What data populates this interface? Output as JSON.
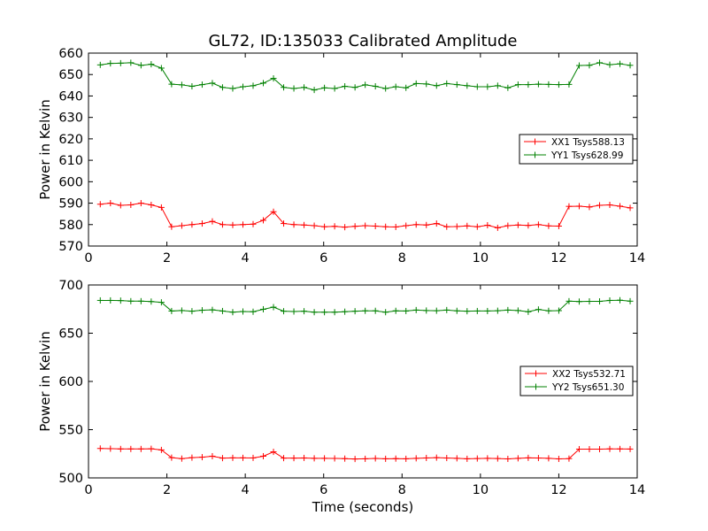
{
  "chart_data": [
    {
      "type": "line",
      "title": "GL72, ID:135033 Calibrated Amplitude",
      "xlabel": "",
      "ylabel": "Power in Kelvin",
      "xlim": [
        0,
        14
      ],
      "ylim": [
        570,
        660
      ],
      "xticks": [
        "0",
        "2",
        "4",
        "6",
        "8",
        "10",
        "12",
        "14"
      ],
      "yticks": [
        "570",
        "580",
        "590",
        "600",
        "610",
        "620",
        "630",
        "640",
        "650",
        "660"
      ],
      "legend_position": "center-right",
      "grid": false,
      "x": [
        0.3,
        0.56,
        0.82,
        1.08,
        1.34,
        1.6,
        1.86,
        2.12,
        2.38,
        2.64,
        2.9,
        3.16,
        3.42,
        3.68,
        3.94,
        4.2,
        4.46,
        4.72,
        4.98,
        5.24,
        5.5,
        5.76,
        6.02,
        6.28,
        6.54,
        6.8,
        7.06,
        7.32,
        7.58,
        7.84,
        8.1,
        8.36,
        8.62,
        8.88,
        9.14,
        9.4,
        9.66,
        9.92,
        10.18,
        10.44,
        10.7,
        10.96,
        11.22,
        11.48,
        11.74,
        12.0,
        12.26,
        12.52,
        12.78,
        13.04,
        13.3,
        13.56,
        13.82
      ],
      "series": [
        {
          "name": "XX1 Tsys588.13",
          "color": "#ff0000",
          "values": [
            589.5,
            590.0,
            589.0,
            589.2,
            590.0,
            589.2,
            588.0,
            579.0,
            579.5,
            580.0,
            580.5,
            581.5,
            580.0,
            579.8,
            580.0,
            580.2,
            582.0,
            586.0,
            580.5,
            580.0,
            579.8,
            579.5,
            579.0,
            579.2,
            578.8,
            579.2,
            579.5,
            579.3,
            579.0,
            578.9,
            579.5,
            580.0,
            579.8,
            580.5,
            579.0,
            579.1,
            579.4,
            579.0,
            579.7,
            578.5,
            579.5,
            579.8,
            579.6,
            580.0,
            579.4,
            579.3,
            588.5,
            588.6,
            588.2,
            589.0,
            589.2,
            588.6,
            587.8
          ]
        },
        {
          "name": "YY1 Tsys628.99",
          "color": "#008000",
          "values": [
            654.5,
            655.2,
            655.3,
            655.5,
            654.3,
            654.8,
            653.0,
            645.5,
            645.2,
            644.5,
            645.3,
            646.0,
            644.0,
            643.5,
            644.3,
            644.8,
            646.0,
            648.2,
            644.0,
            643.5,
            644.0,
            642.8,
            643.8,
            643.5,
            644.5,
            644.0,
            645.2,
            644.5,
            643.5,
            644.3,
            643.8,
            645.8,
            645.6,
            644.8,
            645.8,
            645.3,
            644.8,
            644.3,
            644.3,
            644.8,
            643.8,
            645.3,
            645.3,
            645.5,
            645.4,
            645.3,
            645.4,
            654.2,
            654.3,
            655.5,
            654.6,
            655.0,
            654.3
          ]
        }
      ]
    },
    {
      "type": "line",
      "title": "",
      "xlabel": "Time (seconds)",
      "ylabel": "Power in Kelvin",
      "xlim": [
        0,
        14
      ],
      "ylim": [
        500,
        700
      ],
      "xticks": [
        "0",
        "2",
        "4",
        "6",
        "8",
        "10",
        "12",
        "14"
      ],
      "yticks": [
        "500",
        "550",
        "600",
        "650",
        "700"
      ],
      "legend_position": "center-right",
      "grid": false,
      "x": [
        0.3,
        0.56,
        0.82,
        1.08,
        1.34,
        1.6,
        1.86,
        2.12,
        2.38,
        2.64,
        2.9,
        3.16,
        3.42,
        3.68,
        3.94,
        4.2,
        4.46,
        4.72,
        4.98,
        5.24,
        5.5,
        5.76,
        6.02,
        6.28,
        6.54,
        6.8,
        7.06,
        7.32,
        7.58,
        7.84,
        8.1,
        8.36,
        8.62,
        8.88,
        9.14,
        9.4,
        9.66,
        9.92,
        10.18,
        10.44,
        10.7,
        10.96,
        11.22,
        11.48,
        11.74,
        12.0,
        12.26,
        12.52,
        12.78,
        13.04,
        13.3,
        13.56,
        13.82
      ],
      "series": [
        {
          "name": "XX2 Tsys532.71",
          "color": "#ff0000",
          "values": [
            530.5,
            530.3,
            530.0,
            530.0,
            530.0,
            530.2,
            529.0,
            521.0,
            520.0,
            521.0,
            521.5,
            522.5,
            520.5,
            520.8,
            520.8,
            520.7,
            522.5,
            527.0,
            520.5,
            520.5,
            520.7,
            520.3,
            520.3,
            520.2,
            520.0,
            519.6,
            519.8,
            520.2,
            519.8,
            520.0,
            519.8,
            520.3,
            520.7,
            521.0,
            520.6,
            520.3,
            519.8,
            520.1,
            520.3,
            520.1,
            519.7,
            520.3,
            520.8,
            520.6,
            520.3,
            519.7,
            520.0,
            529.8,
            529.8,
            529.8,
            530.1,
            530.0,
            529.9
          ]
        },
        {
          "name": "YY2 Tsys651.30",
          "color": "#008000",
          "values": [
            684.0,
            684.0,
            683.8,
            683.2,
            683.2,
            682.8,
            682.0,
            673.0,
            673.5,
            672.8,
            673.8,
            674.2,
            673.0,
            671.8,
            672.5,
            672.3,
            674.8,
            677.0,
            672.8,
            672.5,
            672.8,
            671.8,
            671.8,
            671.8,
            672.3,
            672.8,
            673.2,
            673.2,
            671.8,
            673.2,
            673.0,
            674.0,
            673.5,
            673.3,
            674.0,
            673.2,
            672.8,
            673.0,
            673.0,
            673.3,
            674.0,
            673.5,
            672.2,
            674.6,
            673.2,
            673.4,
            683.2,
            682.8,
            683.0,
            683.0,
            684.0,
            684.2,
            683.2
          ]
        }
      ]
    }
  ]
}
